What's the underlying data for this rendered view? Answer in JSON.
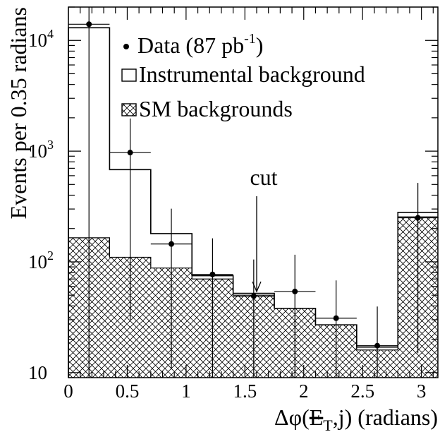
{
  "chart_data": {
    "type": "bar",
    "y_scale": "log",
    "xlim": [
      0,
      3.14
    ],
    "ylim": [
      9,
      20000
    ],
    "bin_edges": [
      0,
      0.35,
      0.7,
      1.05,
      1.4,
      1.75,
      2.1,
      2.45,
      2.8,
      3.14
    ],
    "xlabel_parts": {
      "prefix": "Δφ(",
      "met": "E",
      "sub": "T",
      "suffix": ",j) (radians)"
    },
    "ylabel": "Events per 0.35 radians",
    "x_ticks": [
      {
        "v": 0,
        "label": "0"
      },
      {
        "v": 0.5,
        "label": "0.5"
      },
      {
        "v": 1,
        "label": "1"
      },
      {
        "v": 1.5,
        "label": "1.5"
      },
      {
        "v": 2,
        "label": "2"
      },
      {
        "v": 2.5,
        "label": "2.5"
      },
      {
        "v": 3,
        "label": "3"
      }
    ],
    "y_ticks": [
      {
        "v": 10,
        "base": "10",
        "exp": ""
      },
      {
        "v": 100,
        "base": "10",
        "exp": "2"
      },
      {
        "v": 1000,
        "base": "10",
        "exp": "3"
      },
      {
        "v": 10000,
        "base": "10",
        "exp": "4"
      }
    ],
    "series": [
      {
        "name": "SM backgrounds",
        "style": "hatched-fill",
        "values": [
          165,
          110,
          88,
          70,
          50,
          38,
          27,
          16,
          255
        ]
      },
      {
        "name": "Instrumental background",
        "style": "outline",
        "values": [
          13000,
          680,
          180,
          75,
          52,
          38,
          27,
          17,
          280
        ]
      },
      {
        "name": "Data (87 pb-1)",
        "style": "points",
        "points": [
          {
            "x": 0.175,
            "y": 14000,
            "xerr": 0.175,
            "yerr_lo": 14000,
            "yerr_hi": 14000
          },
          {
            "x": 0.525,
            "y": 970,
            "xerr": 0.175,
            "yerr_lo": 940,
            "yerr_hi": 1000
          },
          {
            "x": 0.875,
            "y": 145,
            "xerr": 0.175,
            "yerr_lo": 134,
            "yerr_hi": 157
          },
          {
            "x": 1.225,
            "y": 77,
            "xerr": 0.175,
            "yerr_lo": 69,
            "yerr_hi": 86
          },
          {
            "x": 1.575,
            "y": 49,
            "xerr": 0.175,
            "yerr_lo": 42,
            "yerr_hi": 56
          },
          {
            "x": 1.925,
            "y": 54,
            "xerr": 0.175,
            "yerr_lo": 47,
            "yerr_hi": 62
          },
          {
            "x": 2.275,
            "y": 31,
            "xerr": 0.175,
            "yerr_lo": 26,
            "yerr_hi": 37
          },
          {
            "x": 2.625,
            "y": 17.5,
            "xerr": 0.175,
            "yerr_lo": 14,
            "yerr_hi": 22
          },
          {
            "x": 2.97,
            "y": 250,
            "xerr": 0.175,
            "yerr_lo": 235,
            "yerr_hi": 266
          }
        ]
      }
    ],
    "legend": {
      "placement": "top-right",
      "data_label": "Data (87 pb",
      "data_label_sup": "-1",
      "data_label_close": ")",
      "instrumental_label": "Instrumental background",
      "sm_label": "SM backgrounds"
    },
    "annotation": {
      "text": "cut",
      "x": 1.6,
      "arrow_to": 48
    }
  }
}
